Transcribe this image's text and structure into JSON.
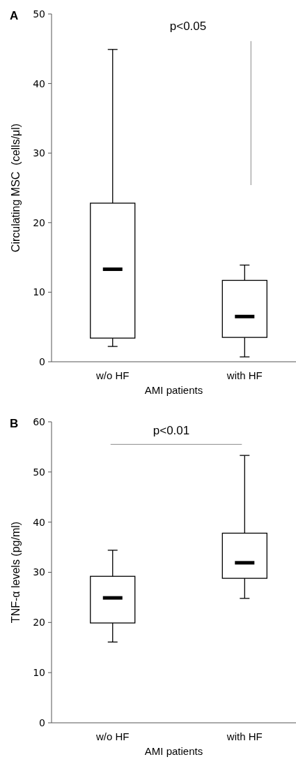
{
  "chart_data": [
    {
      "type": "box",
      "title": "A",
      "categories": [
        "w/o HF",
        "with HF"
      ],
      "xlabel": "AMI patients",
      "ylabel": "Circulating MSC  (cells/μl)",
      "ylim": [
        0,
        50
      ],
      "yticks": [
        0,
        10,
        20,
        30,
        40,
        50
      ],
      "annotations": [
        "p<0.05"
      ],
      "boxes": [
        {
          "low": 2.2,
          "q1": 3.4,
          "median": 13.3,
          "q3": 22.8,
          "high": 44.9
        },
        {
          "low": 0.7,
          "q1": 3.5,
          "median": 6.5,
          "q3": 11.7,
          "high": 13.9
        }
      ]
    },
    {
      "type": "box",
      "title": "B",
      "categories": [
        "w/o HF",
        "with HF"
      ],
      "xlabel": "AMI patients",
      "ylabel": "TNF-α levels (pg/ml)",
      "ylim": [
        0,
        60
      ],
      "yticks": [
        0,
        10,
        20,
        30,
        40,
        50,
        60
      ],
      "annotations": [
        "p<0.01"
      ],
      "boxes": [
        {
          "low": 16.1,
          "q1": 19.9,
          "median": 24.9,
          "q3": 29.2,
          "high": 34.4
        },
        {
          "low": 24.8,
          "q1": 28.8,
          "median": 31.9,
          "q3": 37.8,
          "high": 53.3
        }
      ]
    }
  ]
}
